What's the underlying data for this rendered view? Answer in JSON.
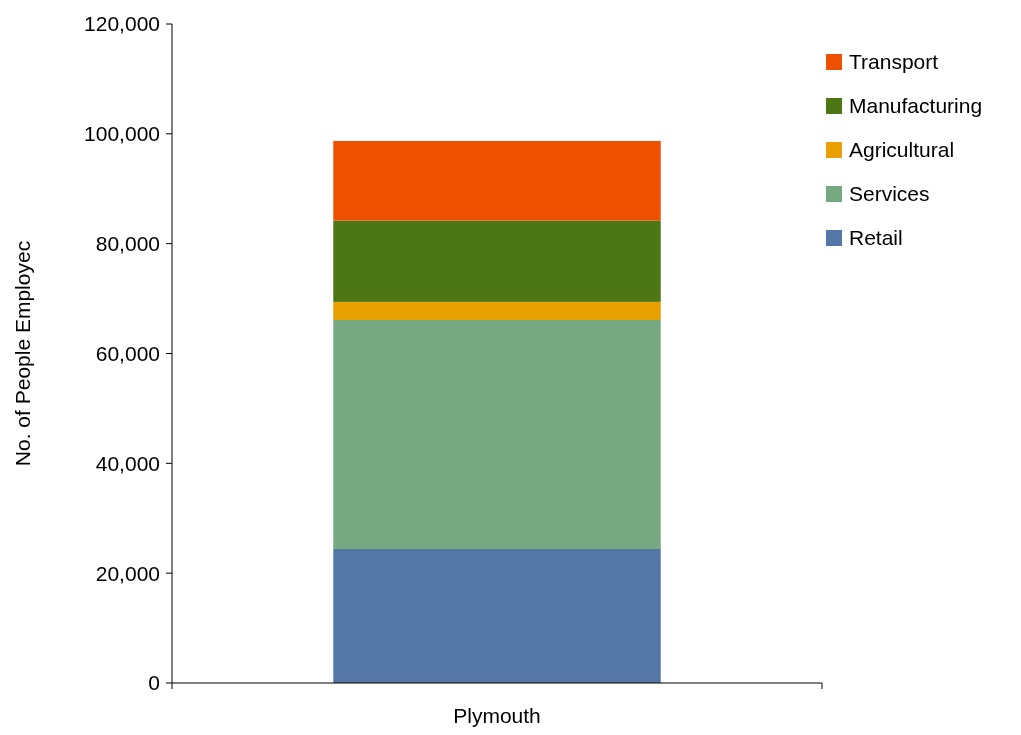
{
  "chart_data": {
    "type": "bar",
    "stacked": true,
    "ylabel": "No. of People Employec",
    "categories": [
      "Plymouth"
    ],
    "series": [
      {
        "name": "Retail",
        "color": "#5577a8",
        "values": [
          24400
        ]
      },
      {
        "name": "Services",
        "color": "#76a97f",
        "values": [
          41700
        ]
      },
      {
        "name": "Agricultural",
        "color": "#e8a000",
        "values": [
          3300
        ]
      },
      {
        "name": "Manufacturing",
        "color": "#4d7614",
        "values": [
          14800
        ]
      },
      {
        "name": "Transport",
        "color": "#ef5000",
        "values": [
          14500
        ]
      }
    ],
    "ylim": [
      0,
      120000
    ],
    "yticks": [
      {
        "value": 0,
        "label": "0"
      },
      {
        "value": 20000,
        "label": "20,000"
      },
      {
        "value": 40000,
        "label": "40,000"
      },
      {
        "value": 60000,
        "label": "60,000"
      },
      {
        "value": 80000,
        "label": "80,000"
      },
      {
        "value": 100000,
        "label": "100,000"
      },
      {
        "value": 120000,
        "label": "120,000"
      }
    ],
    "grid": false,
    "legend": "top right"
  }
}
